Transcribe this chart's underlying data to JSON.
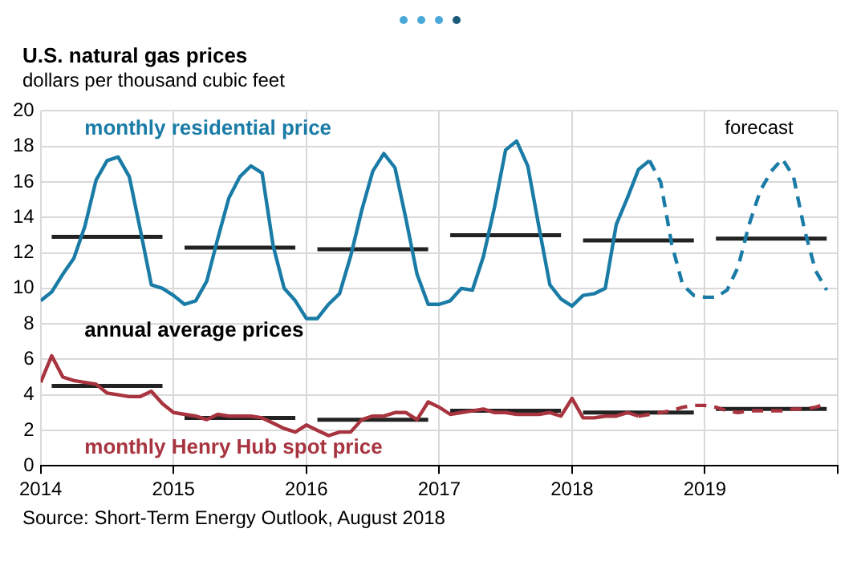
{
  "chart_data": {
    "type": "line",
    "title": "U.S. natural gas prices",
    "ylabel": "dollars per thousand cubic feet",
    "x": [
      2014,
      2014.083,
      2014.167,
      2014.25,
      2014.333,
      2014.417,
      2014.5,
      2014.583,
      2014.667,
      2014.75,
      2014.833,
      2014.917,
      2015,
      2015.083,
      2015.167,
      2015.25,
      2015.333,
      2015.417,
      2015.5,
      2015.583,
      2015.667,
      2015.75,
      2015.833,
      2015.917,
      2016,
      2016.083,
      2016.167,
      2016.25,
      2016.333,
      2016.417,
      2016.5,
      2016.583,
      2016.667,
      2016.75,
      2016.833,
      2016.917,
      2017,
      2017.083,
      2017.167,
      2017.25,
      2017.333,
      2017.417,
      2017.5,
      2017.583,
      2017.667,
      2017.75,
      2017.833,
      2017.917,
      2018,
      2018.083,
      2018.167,
      2018.25,
      2018.333,
      2018.417,
      2018.5,
      2018.583,
      2018.667,
      2018.75,
      2018.833,
      2018.917,
      2019,
      2019.083,
      2019.167,
      2019.25,
      2019.333,
      2019.417,
      2019.5,
      2019.583,
      2019.667,
      2019.75,
      2019.833,
      2019.917
    ],
    "series": [
      {
        "name": "monthly residential price",
        "color": "#1a7ca6",
        "values": [
          9.3,
          9.8,
          10.8,
          11.7,
          13.5,
          16.1,
          17.2,
          17.4,
          16.3,
          13.3,
          10.2,
          10.0,
          9.6,
          9.1,
          9.3,
          10.4,
          12.8,
          15.1,
          16.3,
          16.9,
          16.5,
          12.4,
          10.0,
          9.3,
          8.3,
          8.3,
          9.1,
          9.7,
          11.8,
          14.4,
          16.6,
          17.6,
          16.8,
          13.9,
          10.8,
          9.1,
          9.1,
          9.3,
          10.0,
          9.9,
          11.8,
          14.6,
          17.8,
          18.3,
          16.9,
          13.5,
          10.2,
          9.4,
          9.0,
          9.6,
          9.7,
          10.0,
          13.6,
          15.1,
          16.7,
          17.2,
          null,
          null,
          null,
          null,
          null,
          null,
          null,
          null,
          null,
          null,
          null,
          null,
          null,
          null,
          null,
          null
        ]
      },
      {
        "color": "#1a7ca6",
        "line_style": "dashed",
        "values": [
          null,
          null,
          null,
          null,
          null,
          null,
          null,
          null,
          null,
          null,
          null,
          null,
          null,
          null,
          null,
          null,
          null,
          null,
          null,
          null,
          null,
          null,
          null,
          null,
          null,
          null,
          null,
          null,
          null,
          null,
          null,
          null,
          null,
          null,
          null,
          null,
          null,
          null,
          null,
          null,
          null,
          null,
          null,
          null,
          null,
          null,
          null,
          null,
          null,
          null,
          null,
          null,
          null,
          null,
          null,
          17.2,
          16.0,
          12.5,
          10.2,
          9.6,
          9.5,
          9.5,
          9.9,
          11.2,
          13.6,
          15.5,
          16.6,
          17.3,
          16.3,
          13.3,
          11.0,
          9.9
        ]
      },
      {
        "name": "monthly Henry Hub spot price",
        "color": "#a8343f",
        "values": [
          4.7,
          6.2,
          5.0,
          4.8,
          4.7,
          4.6,
          4.1,
          4.0,
          3.9,
          3.9,
          4.2,
          3.5,
          3.0,
          2.9,
          2.8,
          2.6,
          2.9,
          2.8,
          2.8,
          2.8,
          2.7,
          2.4,
          2.1,
          1.9,
          2.3,
          2.0,
          1.7,
          1.9,
          1.9,
          2.6,
          2.8,
          2.8,
          3.0,
          3.0,
          2.6,
          3.6,
          3.3,
          2.9,
          3.0,
          3.1,
          3.2,
          3.0,
          3.0,
          2.9,
          2.9,
          2.9,
          3.0,
          2.8,
          3.8,
          2.7,
          2.7,
          2.8,
          2.8,
          3.0,
          2.8,
          null,
          null,
          null,
          null,
          null,
          null,
          null,
          null,
          null,
          null,
          null,
          null,
          null,
          null,
          null,
          null,
          null
        ]
      },
      {
        "color": "#a8343f",
        "line_style": "dashed",
        "values": [
          null,
          null,
          null,
          null,
          null,
          null,
          null,
          null,
          null,
          null,
          null,
          null,
          null,
          null,
          null,
          null,
          null,
          null,
          null,
          null,
          null,
          null,
          null,
          null,
          null,
          null,
          null,
          null,
          null,
          null,
          null,
          null,
          null,
          null,
          null,
          null,
          null,
          null,
          null,
          null,
          null,
          null,
          null,
          null,
          null,
          null,
          null,
          null,
          null,
          null,
          null,
          null,
          null,
          null,
          2.8,
          2.9,
          3.0,
          3.1,
          3.3,
          3.4,
          3.4,
          3.3,
          3.1,
          3.0,
          3.1,
          3.1,
          3.1,
          3.1,
          3.2,
          3.2,
          3.3,
          3.5
        ]
      },
      {
        "color": "#222222",
        "x": [
          2014.083,
          2014.917,
          2015,
          2015.083,
          2015.917,
          2016,
          2016.083,
          2016.917,
          2017,
          2017.083,
          2017.917,
          2018,
          2018.083,
          2018.917,
          2019,
          2019.083,
          2019.917
        ],
        "values": [
          12.9,
          12.9,
          null,
          12.3,
          12.3,
          null,
          12.2,
          12.2,
          null,
          13.0,
          13.0,
          null,
          12.7,
          12.7,
          null,
          12.8,
          12.8
        ]
      },
      {
        "color": "#222222",
        "x": [
          2014.083,
          2014.917,
          2015,
          2015.083,
          2015.917,
          2016,
          2016.083,
          2016.917,
          2017,
          2017.083,
          2017.917,
          2018,
          2018.083,
          2018.917,
          2019,
          2019.083,
          2019.917
        ],
        "values": [
          4.5,
          4.5,
          null,
          2.7,
          2.7,
          null,
          2.6,
          2.6,
          null,
          3.1,
          3.1,
          null,
          3.0,
          3.0,
          null,
          3.2,
          3.2
        ]
      }
    ],
    "xlim": [
      2014,
      2020
    ],
    "xticks": [
      2014,
      2015,
      2016,
      2017,
      2018,
      2019,
      {
        "value": 2020,
        "label": null
      }
    ],
    "ylim": [
      0,
      20
    ],
    "yticks": [
      0,
      2,
      4,
      6,
      8,
      10,
      12,
      14,
      16,
      18,
      20
    ],
    "grid": true,
    "legend": false,
    "marker": "none",
    "line_style": "solid",
    "annotations": [
      "annual average prices",
      "forecast",
      "Source: Short-Term Energy Outlook, August 2018"
    ]
  }
}
